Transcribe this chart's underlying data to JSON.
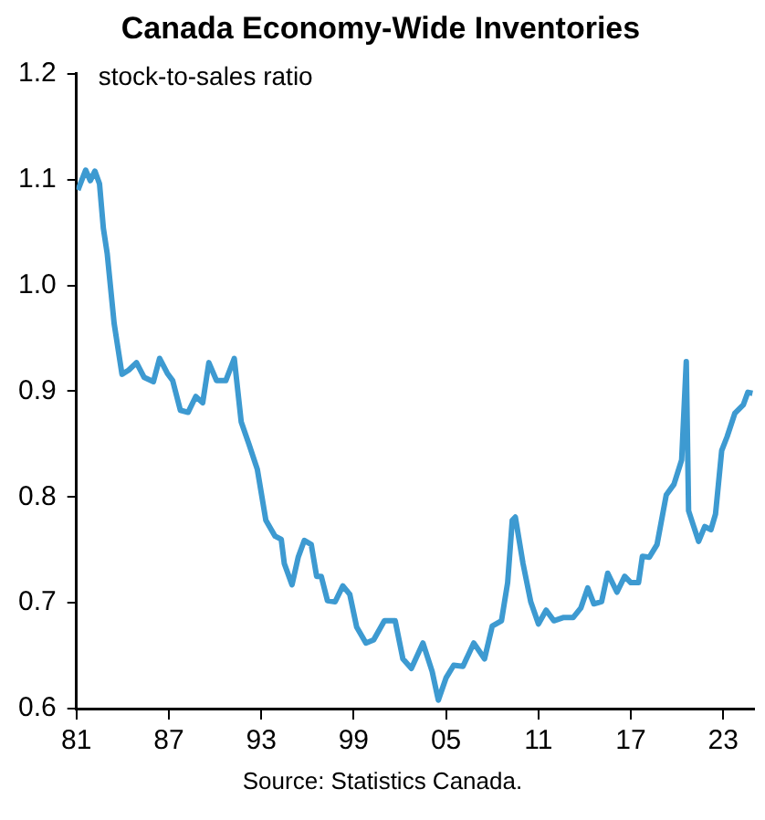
{
  "chart_data": {
    "type": "line",
    "title": "Canada Economy-Wide Inventories",
    "ylabel": "stock-to-sales ratio",
    "annotations": [
      "Source: Statistics Canada."
    ],
    "x": [
      1981.1,
      1981.6,
      1981.9,
      1982.2,
      1982.5,
      1982.75,
      1983.0,
      1983.45,
      1983.96,
      1984.4,
      1984.9,
      1985.4,
      1986.0,
      1986.4,
      1986.9,
      1987.25,
      1987.75,
      1988.25,
      1988.75,
      1989.2,
      1989.6,
      1990.1,
      1990.7,
      1991.25,
      1991.7,
      1992.2,
      1992.75,
      1993.3,
      1993.9,
      1994.3,
      1994.5,
      1995.0,
      1995.4,
      1995.8,
      1996.25,
      1996.6,
      1996.9,
      1997.3,
      1997.8,
      1998.3,
      1998.75,
      1999.2,
      1999.8,
      2000.3,
      2001.0,
      2001.7,
      2002.2,
      2002.75,
      2003.5,
      2004.1,
      2004.5,
      2005.0,
      2005.5,
      2006.1,
      2006.8,
      2007.5,
      2008.0,
      2008.6,
      2009.0,
      2009.3,
      2009.5,
      2010.0,
      2010.5,
      2011.0,
      2011.5,
      2012.0,
      2012.6,
      2013.25,
      2013.75,
      2014.2,
      2014.6,
      2015.1,
      2015.5,
      2016.1,
      2016.6,
      2017.0,
      2017.5,
      2017.75,
      2018.2,
      2018.7,
      2019.3,
      2019.8,
      2020.3,
      2020.6,
      2020.75,
      2021.4,
      2021.8,
      2022.2,
      2022.5,
      2022.9,
      2023.25,
      2023.75,
      2024.3,
      2024.6,
      2024.9
    ],
    "series": [
      {
        "color": "#3d9ad1",
        "values": [
          1.09,
          1.109,
          1.099,
          1.108,
          1.096,
          1.054,
          1.03,
          0.964,
          0.916,
          0.92,
          0.927,
          0.913,
          0.909,
          0.931,
          0.917,
          0.91,
          0.882,
          0.88,
          0.895,
          0.889,
          0.927,
          0.91,
          0.91,
          0.931,
          0.871,
          0.85,
          0.826,
          0.778,
          0.763,
          0.76,
          0.737,
          0.717,
          0.743,
          0.759,
          0.755,
          0.725,
          0.725,
          0.702,
          0.701,
          0.716,
          0.708,
          0.677,
          0.662,
          0.665,
          0.683,
          0.683,
          0.647,
          0.638,
          0.662,
          0.635,
          0.608,
          0.629,
          0.641,
          0.64,
          0.662,
          0.647,
          0.678,
          0.683,
          0.719,
          0.778,
          0.781,
          0.737,
          0.701,
          0.68,
          0.693,
          0.683,
          0.686,
          0.686,
          0.695,
          0.714,
          0.699,
          0.701,
          0.728,
          0.71,
          0.725,
          0.719,
          0.719,
          0.744,
          0.743,
          0.755,
          0.802,
          0.812,
          0.835,
          0.928,
          0.787,
          0.758,
          0.772,
          0.769,
          0.784,
          0.844,
          0.857,
          0.879,
          0.887,
          0.899,
          0.898
        ]
      }
    ],
    "xlim": [
      1981,
      2025
    ],
    "xticks": [
      {
        "value": 1981,
        "label": "81"
      },
      {
        "value": 1987,
        "label": "87"
      },
      {
        "value": 1993,
        "label": "93"
      },
      {
        "value": 1999,
        "label": "99"
      },
      {
        "value": 2005,
        "label": "05"
      },
      {
        "value": 2011,
        "label": "11"
      },
      {
        "value": 2017,
        "label": "17"
      },
      {
        "value": 2023,
        "label": "23"
      }
    ],
    "ylim": [
      0.6,
      1.2
    ],
    "yticks": [
      0.6,
      0.7,
      0.8,
      0.9,
      {
        "value": 1,
        "label": "1.0"
      },
      1.1,
      1.2
    ],
    "grid": false,
    "legend": false,
    "marker": "none",
    "line_style": "solid"
  }
}
